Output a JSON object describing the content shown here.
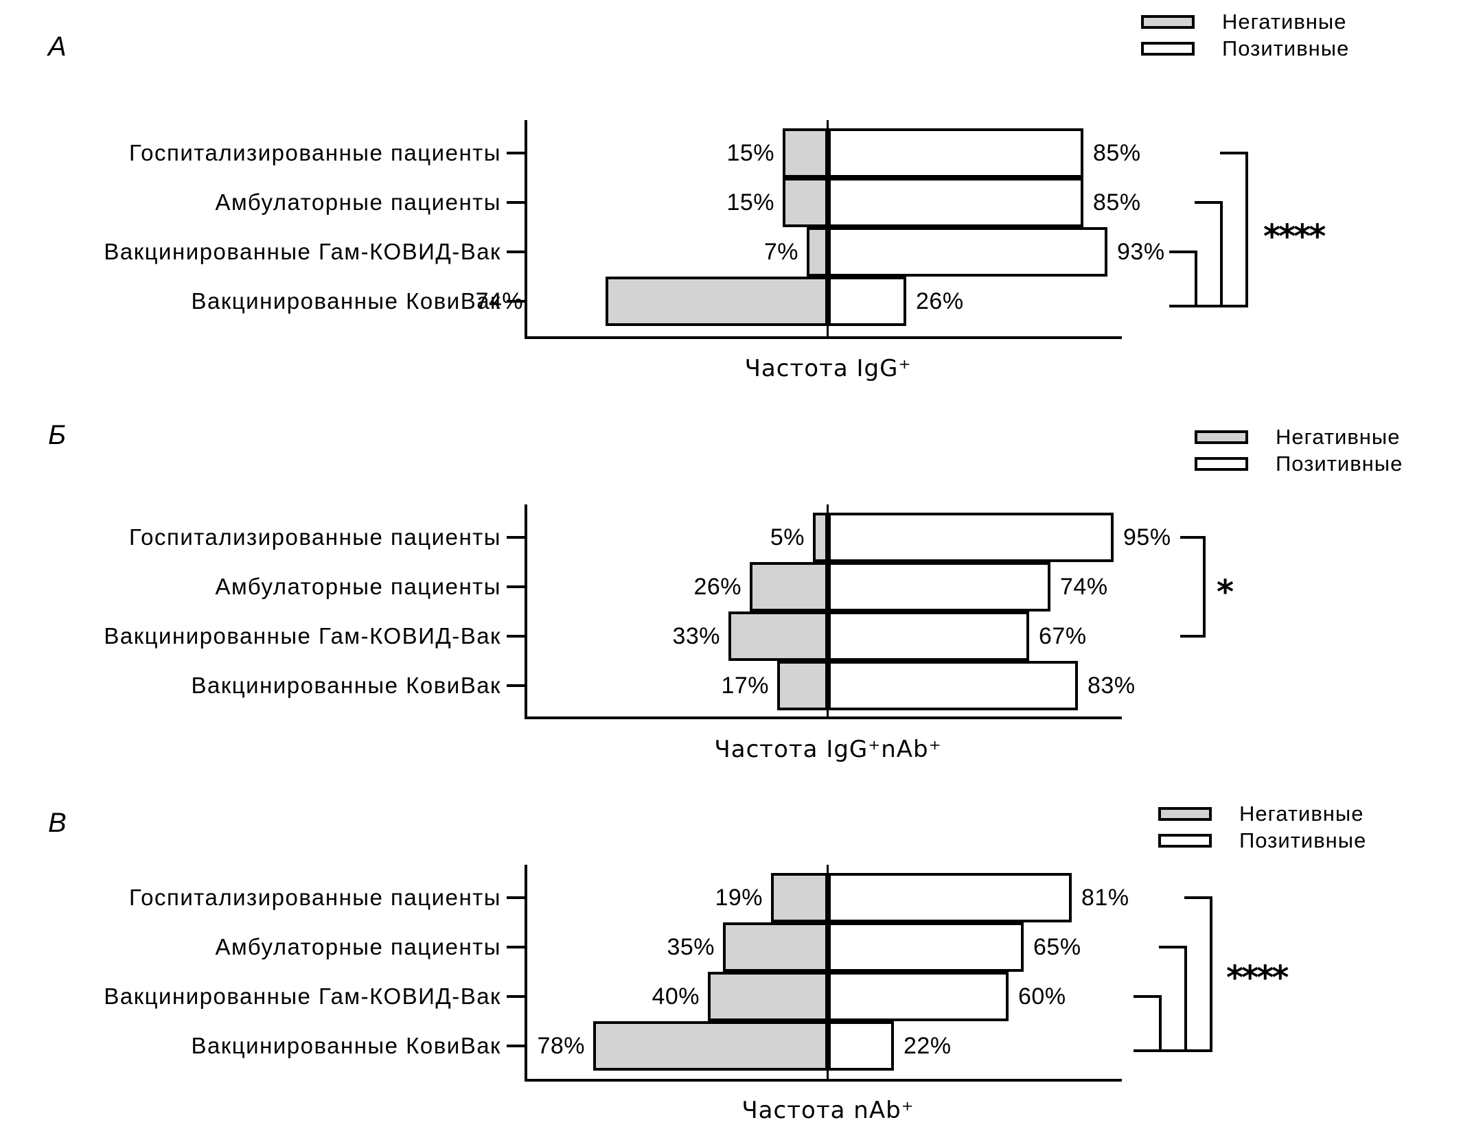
{
  "legend": {
    "negative": "Негативные",
    "positive": "Позитивные"
  },
  "colors": {
    "negative_fill": "#d3d3d3",
    "positive_fill": "#ffffff",
    "line": "#000000"
  },
  "categories": [
    "Госпитализированные пациенты",
    "Амбулаторные пациенты",
    "Вакцинированные Гам-КОВИД-Вак",
    "Вакцинированные КовиВак"
  ],
  "value_suffix": "%",
  "chart_data": [
    {
      "panel": "А",
      "type": "bar",
      "orientation": "horizontal-diverging",
      "xlabel": "Частота IgG⁺",
      "legend_position": "top-right",
      "series": [
        {
          "name": "Негативные",
          "side": "left",
          "values": [
            15,
            15,
            7,
            74
          ]
        },
        {
          "name": "Позитивные",
          "side": "right",
          "values": [
            85,
            85,
            93,
            26
          ]
        }
      ],
      "significance": {
        "label": "****",
        "comparisons": [
          [
            1,
            4
          ],
          [
            2,
            4
          ],
          [
            3,
            4
          ]
        ]
      }
    },
    {
      "panel": "Б",
      "type": "bar",
      "orientation": "horizontal-diverging",
      "xlabel": "Частота IgG⁺nAb⁺",
      "legend_position": "top-right",
      "series": [
        {
          "name": "Негативные",
          "side": "left",
          "values": [
            5,
            26,
            33,
            17
          ]
        },
        {
          "name": "Позитивные",
          "side": "right",
          "values": [
            95,
            74,
            67,
            83
          ]
        }
      ],
      "significance": {
        "label": "*",
        "comparisons": [
          [
            1,
            3
          ]
        ]
      }
    },
    {
      "panel": "В",
      "type": "bar",
      "orientation": "horizontal-diverging",
      "xlabel": "Частота nAb⁺",
      "legend_position": "top-right",
      "series": [
        {
          "name": "Негативные",
          "side": "left",
          "values": [
            19,
            35,
            40,
            78
          ]
        },
        {
          "name": "Позитивные",
          "side": "right",
          "values": [
            81,
            65,
            60,
            22
          ]
        }
      ],
      "significance": {
        "label": "****",
        "comparisons": [
          [
            1,
            4
          ],
          [
            2,
            4
          ],
          [
            3,
            4
          ]
        ]
      }
    }
  ]
}
